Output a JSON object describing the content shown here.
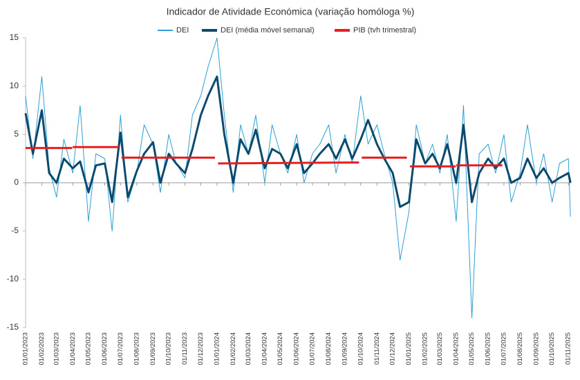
{
  "chart_data": {
    "type": "line",
    "title": "Indicador de Atividade Económica (variação homóloga %)",
    "x": [
      "2023-01-01",
      "2023-01-15",
      "2023-02-01",
      "2023-02-15",
      "2023-03-01",
      "2023-03-15",
      "2023-04-01",
      "2023-04-15",
      "2023-05-01",
      "2023-05-15",
      "2023-06-01",
      "2023-06-15",
      "2023-07-01",
      "2023-07-15",
      "2023-08-01",
      "2023-08-15",
      "2023-09-01",
      "2023-09-15",
      "2023-10-01",
      "2023-10-15",
      "2023-11-01",
      "2023-11-15",
      "2023-12-01",
      "2023-12-15",
      "2024-01-01",
      "2024-01-15",
      "2024-02-01",
      "2024-02-15",
      "2024-03-01",
      "2024-03-15",
      "2024-04-01",
      "2024-04-15",
      "2024-05-01",
      "2024-05-15",
      "2024-06-01",
      "2024-06-15",
      "2024-07-01",
      "2024-07-15",
      "2024-08-01",
      "2024-08-15",
      "2024-09-01",
      "2024-09-15",
      "2024-10-01",
      "2024-10-15",
      "2024-11-01",
      "2024-11-15",
      "2024-12-01",
      "2024-12-15",
      "2025-01-01",
      "2025-01-15",
      "2025-02-01",
      "2025-02-15",
      "2025-03-01",
      "2025-03-15",
      "2025-04-01",
      "2025-04-15",
      "2025-05-01",
      "2025-05-15",
      "2025-06-01",
      "2025-06-15",
      "2025-07-01",
      "2025-07-15",
      "2025-08-01",
      "2025-08-15",
      "2025-09-01",
      "2025-09-15",
      "2025-10-01",
      "2025-10-15",
      "2025-11-01",
      "2025-11-05"
    ],
    "series": [
      {
        "name": "DEI",
        "color": "#2aa0d4",
        "width": 1,
        "values": [
          9,
          2.5,
          11,
          1.5,
          -1.5,
          4.5,
          1,
          8,
          -4,
          3,
          2.5,
          -5,
          7,
          -2,
          1,
          6,
          4,
          -1,
          5,
          2,
          0.5,
          7,
          9,
          12,
          15,
          7,
          -1,
          6,
          3,
          7,
          0,
          6,
          3,
          1,
          5,
          0,
          3,
          4,
          6,
          1,
          5,
          2,
          9,
          4,
          6,
          3,
          0,
          -8,
          -3,
          6,
          2,
          4,
          1,
          5,
          -4,
          8,
          -14,
          3,
          4,
          1,
          5,
          -2,
          1,
          6,
          0,
          3,
          -2,
          2,
          2.5,
          -3.5
        ]
      },
      {
        "name": "DEI (média móvel semanal)",
        "color": "#0b4a6e",
        "width": 3,
        "values": [
          7.2,
          3,
          7.5,
          1,
          0,
          2.5,
          1.5,
          2.2,
          -1,
          1.8,
          2,
          -2,
          5.2,
          -1.5,
          1.2,
          3,
          4.2,
          0,
          3,
          2,
          1,
          3.5,
          7,
          9,
          11,
          5,
          0,
          4.5,
          3,
          5.5,
          1.5,
          3.5,
          3,
          1.5,
          4,
          1,
          2,
          3,
          4,
          2.5,
          4.5,
          2.5,
          4.5,
          6.5,
          4,
          2.5,
          1,
          -2.5,
          -2,
          4.5,
          2,
          3,
          1.5,
          4,
          0,
          6,
          -2,
          1,
          2.5,
          1.5,
          2.5,
          0,
          0.5,
          2.5,
          0.5,
          1.5,
          0,
          0.5,
          1,
          0
        ]
      },
      {
        "name": "PIB (tvh trimestral)",
        "color": "#e81c1c",
        "width": 3,
        "x": [
          "2023-01-01",
          "2023-03-31",
          "2023-04-01",
          "2023-04-01",
          "2023-06-28",
          "2023-07-03",
          "2023-07-03",
          "2023-12-28",
          "2024-01-03",
          "2024-01-03",
          "2024-09-28",
          "2024-10-03",
          "2024-10-03",
          "2024-12-28",
          "2025-01-03",
          "2025-01-03",
          "2025-03-31",
          "2025-04-01",
          "2025-04-01",
          "2025-06-28"
        ],
        "values": [
          3.6,
          3.6,
          null,
          3.7,
          3.7,
          null,
          2.6,
          2.6,
          null,
          2.0,
          2.1,
          null,
          2.6,
          2.6,
          null,
          1.7,
          1.7,
          null,
          1.8,
          1.8
        ]
      }
    ],
    "xlim": [
      "2023-01-01",
      "2025-11-06"
    ],
    "xticks": [
      {
        "value": "2023-01-01",
        "label": "01/01/2023"
      },
      {
        "value": "2023-02-01",
        "label": "01/02/2023"
      },
      {
        "value": "2023-03-01",
        "label": "01/03/2023"
      },
      {
        "value": "2023-04-01",
        "label": "01/04/2023"
      },
      {
        "value": "2023-05-01",
        "label": "01/05/2023"
      },
      {
        "value": "2023-06-01",
        "label": "01/06/2023"
      },
      {
        "value": "2023-07-01",
        "label": "01/07/2023"
      },
      {
        "value": "2023-08-01",
        "label": "01/08/2023"
      },
      {
        "value": "2023-09-01",
        "label": "01/09/2023"
      },
      {
        "value": "2023-10-01",
        "label": "01/10/2023"
      },
      {
        "value": "2023-11-01",
        "label": "01/11/2023"
      },
      {
        "value": "2023-12-01",
        "label": "01/12/2023"
      },
      {
        "value": "2024-01-01",
        "label": "01/01/2024"
      },
      {
        "value": "2024-02-01",
        "label": "01/02/2024"
      },
      {
        "value": "2024-03-01",
        "label": "01/03/2024"
      },
      {
        "value": "2024-04-01",
        "label": "01/04/2024"
      },
      {
        "value": "2024-05-01",
        "label": "01/05/2024"
      },
      {
        "value": "2024-06-01",
        "label": "01/06/2024"
      },
      {
        "value": "2024-07-01",
        "label": "01/07/2024"
      },
      {
        "value": "2024-08-01",
        "label": "01/08/2024"
      },
      {
        "value": "2024-09-01",
        "label": "01/09/2024"
      },
      {
        "value": "2024-10-01",
        "label": "01/10/2024"
      },
      {
        "value": "2024-11-01",
        "label": "01/11/2024"
      },
      {
        "value": "2024-12-01",
        "label": "01/12/2024"
      },
      {
        "value": "2025-01-01",
        "label": "01/01/2025"
      },
      {
        "value": "2025-02-01",
        "label": "01/02/2025"
      },
      {
        "value": "2025-03-01",
        "label": "01/03/2025"
      },
      {
        "value": "2025-04-01",
        "label": "01/04/2025"
      },
      {
        "value": "2025-05-01",
        "label": "01/05/2025"
      },
      {
        "value": "2025-06-01",
        "label": "01/06/2025"
      },
      {
        "value": "2025-07-01",
        "label": "01/07/2025"
      },
      {
        "value": "2025-08-01",
        "label": "01/08/2025"
      },
      {
        "value": "2025-09-01",
        "label": "01/09/2025"
      },
      {
        "value": "2025-10-01",
        "label": "01/10/2025"
      },
      {
        "value": "2025-11-01",
        "label": "01/11/2025"
      }
    ],
    "ylim": [
      -15,
      15
    ],
    "yticks": [
      -15,
      -10,
      -5,
      0,
      5,
      10,
      15
    ],
    "grid": false,
    "legend": "top"
  }
}
